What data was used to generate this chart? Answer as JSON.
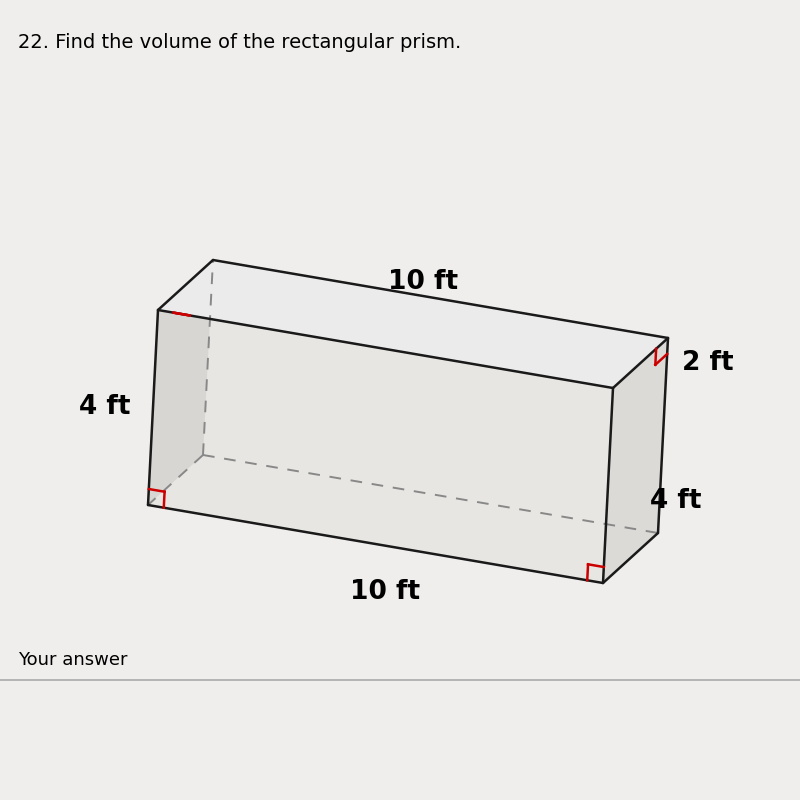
{
  "title": "22. Find the volume of the rectangular prism.",
  "title_fontsize": 14,
  "background_color": "#f0eeec",
  "label_10ft_top": "10 ft",
  "label_10ft_bottom": "10 ft",
  "label_4ft_left": "4 ft",
  "label_2ft_right": "2 ft",
  "label_4ft_right": "4 ft",
  "footer_text": "Your answer",
  "line_color": "#1a1a1a",
  "dashed_color": "#888888",
  "right_angle_color": "#cc0000",
  "front_face_color": "#e8e6e2",
  "top_face_color": "#ebebeb",
  "right_face_color": "#dcdad6",
  "bottom_face_color": "#d0cecc"
}
